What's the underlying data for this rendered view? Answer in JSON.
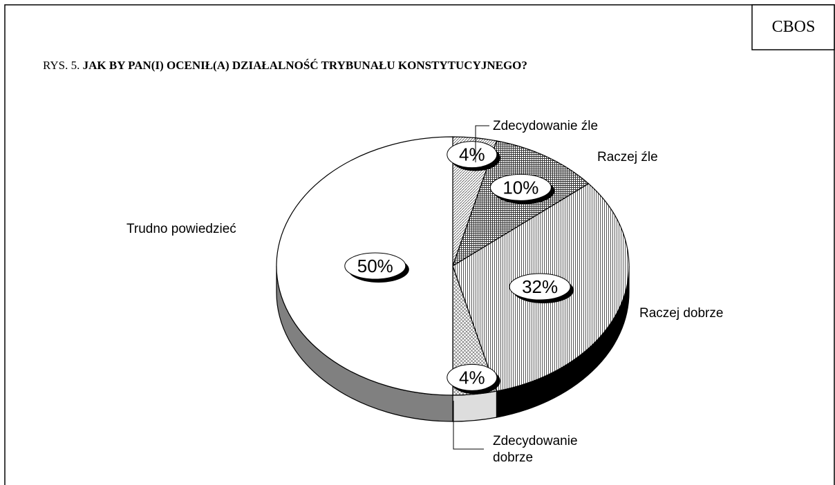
{
  "chart_data": {
    "type": "pie",
    "source": "CBOS",
    "title_prefix": "RYS. 5.",
    "title": "JAK BY PAN(I) OCENIŁ(A) DZIAŁALNOŚĆ TRYBUNAŁU KONSTYTUCYJNEGO?",
    "categories": [
      "Zdecydowanie źle",
      "Raczej źle",
      "Raczej dobrze",
      "Zdecydowanie dobrze",
      "Trudno powiedzieć"
    ],
    "values": [
      4,
      10,
      32,
      4,
      50
    ],
    "value_labels": [
      "4%",
      "10%",
      "32%",
      "4%",
      "50%"
    ]
  }
}
